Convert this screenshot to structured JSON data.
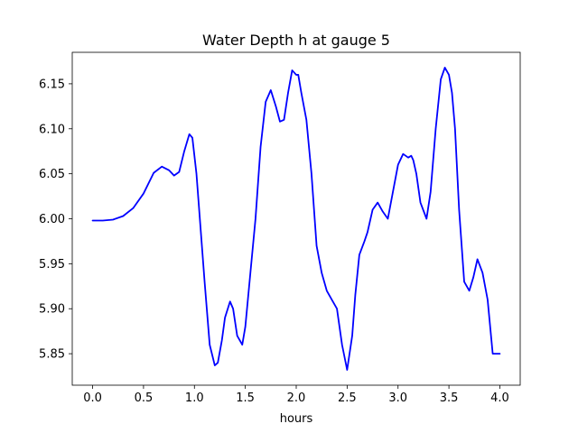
{
  "chart_data": {
    "type": "line",
    "title": "Water Depth h at gauge 5",
    "xlabel": "hours",
    "ylabel": "",
    "xlim": [
      -0.2,
      4.2
    ],
    "ylim": [
      5.815,
      6.185
    ],
    "xticks": [
      0.0,
      0.5,
      1.0,
      1.5,
      2.0,
      2.5,
      3.0,
      3.5,
      4.0
    ],
    "xtick_labels": [
      "0.0",
      "0.5",
      "1.0",
      "1.5",
      "2.0",
      "2.5",
      "3.0",
      "3.5",
      "4.0"
    ],
    "yticks": [
      5.85,
      5.9,
      5.95,
      6.0,
      6.05,
      6.1,
      6.15
    ],
    "ytick_labels": [
      "5.85",
      "5.90",
      "5.95",
      "6.00",
      "6.05",
      "6.10",
      "6.15"
    ],
    "grid": false,
    "series": [
      {
        "color": "#0000ff",
        "x": [
          0.0,
          0.1,
          0.2,
          0.3,
          0.4,
          0.5,
          0.6,
          0.68,
          0.75,
          0.8,
          0.85,
          0.9,
          0.95,
          0.98,
          1.02,
          1.06,
          1.1,
          1.15,
          1.2,
          1.23,
          1.27,
          1.3,
          1.35,
          1.38,
          1.42,
          1.47,
          1.5,
          1.55,
          1.6,
          1.65,
          1.7,
          1.75,
          1.8,
          1.84,
          1.88,
          1.92,
          1.96,
          2.0,
          2.02,
          2.05,
          2.1,
          2.15,
          2.2,
          2.25,
          2.3,
          2.35,
          2.4,
          2.45,
          2.5,
          2.55,
          2.58,
          2.62,
          2.67,
          2.7,
          2.75,
          2.8,
          2.85,
          2.9,
          2.95,
          3.0,
          3.05,
          3.1,
          3.13,
          3.15,
          3.18,
          3.22,
          3.28,
          3.32,
          3.37,
          3.42,
          3.46,
          3.5,
          3.53,
          3.56,
          3.6,
          3.65,
          3.7,
          3.74,
          3.78,
          3.83,
          3.88,
          3.93,
          4.0
        ],
        "y": [
          5.998,
          5.998,
          5.999,
          6.003,
          6.012,
          6.028,
          6.051,
          6.058,
          6.054,
          6.048,
          6.052,
          6.075,
          6.094,
          6.09,
          6.05,
          5.99,
          5.93,
          5.86,
          5.837,
          5.84,
          5.865,
          5.89,
          5.908,
          5.9,
          5.87,
          5.86,
          5.88,
          5.94,
          6.0,
          6.08,
          6.13,
          6.143,
          6.125,
          6.108,
          6.11,
          6.14,
          6.165,
          6.16,
          6.16,
          6.14,
          6.11,
          6.05,
          5.97,
          5.94,
          5.92,
          5.91,
          5.9,
          5.86,
          5.832,
          5.87,
          5.915,
          5.96,
          5.975,
          5.985,
          6.01,
          6.018,
          6.008,
          6.0,
          6.03,
          6.06,
          6.072,
          6.068,
          6.07,
          6.065,
          6.05,
          6.018,
          6.0,
          6.03,
          6.1,
          6.155,
          6.168,
          6.16,
          6.14,
          6.1,
          6.01,
          5.93,
          5.92,
          5.935,
          5.955,
          5.94,
          5.91,
          5.85,
          5.85
        ]
      }
    ]
  }
}
